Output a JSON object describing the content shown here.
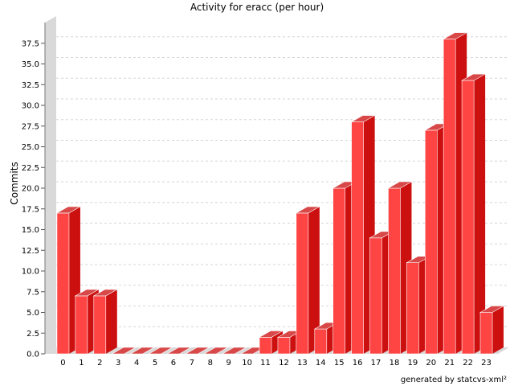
{
  "chart_data": {
    "type": "bar",
    "title": "Activity for eracc (per hour)",
    "xlabel": "",
    "ylabel": "Commits",
    "categories": [
      "0",
      "1",
      "2",
      "3",
      "4",
      "5",
      "6",
      "7",
      "8",
      "9",
      "10",
      "11",
      "12",
      "13",
      "14",
      "15",
      "16",
      "17",
      "18",
      "19",
      "20",
      "21",
      "22",
      "23"
    ],
    "values": [
      17,
      7,
      7,
      0,
      0,
      0,
      0,
      0,
      0,
      0,
      0,
      2,
      2,
      17,
      3,
      20,
      28,
      14,
      20,
      11,
      27,
      38,
      33,
      5
    ],
    "ylim": [
      0,
      40
    ],
    "yticks": [
      "0.0",
      "2.5",
      "5.0",
      "7.5",
      "10.0",
      "12.5",
      "15.0",
      "17.5",
      "20.0",
      "22.5",
      "25.0",
      "27.5",
      "30.0",
      "32.5",
      "35.0",
      "37.5"
    ],
    "grid": true,
    "colors": {
      "bar_front": "#ff4444",
      "bar_top": "#d84848",
      "bar_side": "#cc1010",
      "wall": "#d9d9d9",
      "grid": "#d6d6d6"
    }
  },
  "footer": "generated by statcvs-xml²"
}
